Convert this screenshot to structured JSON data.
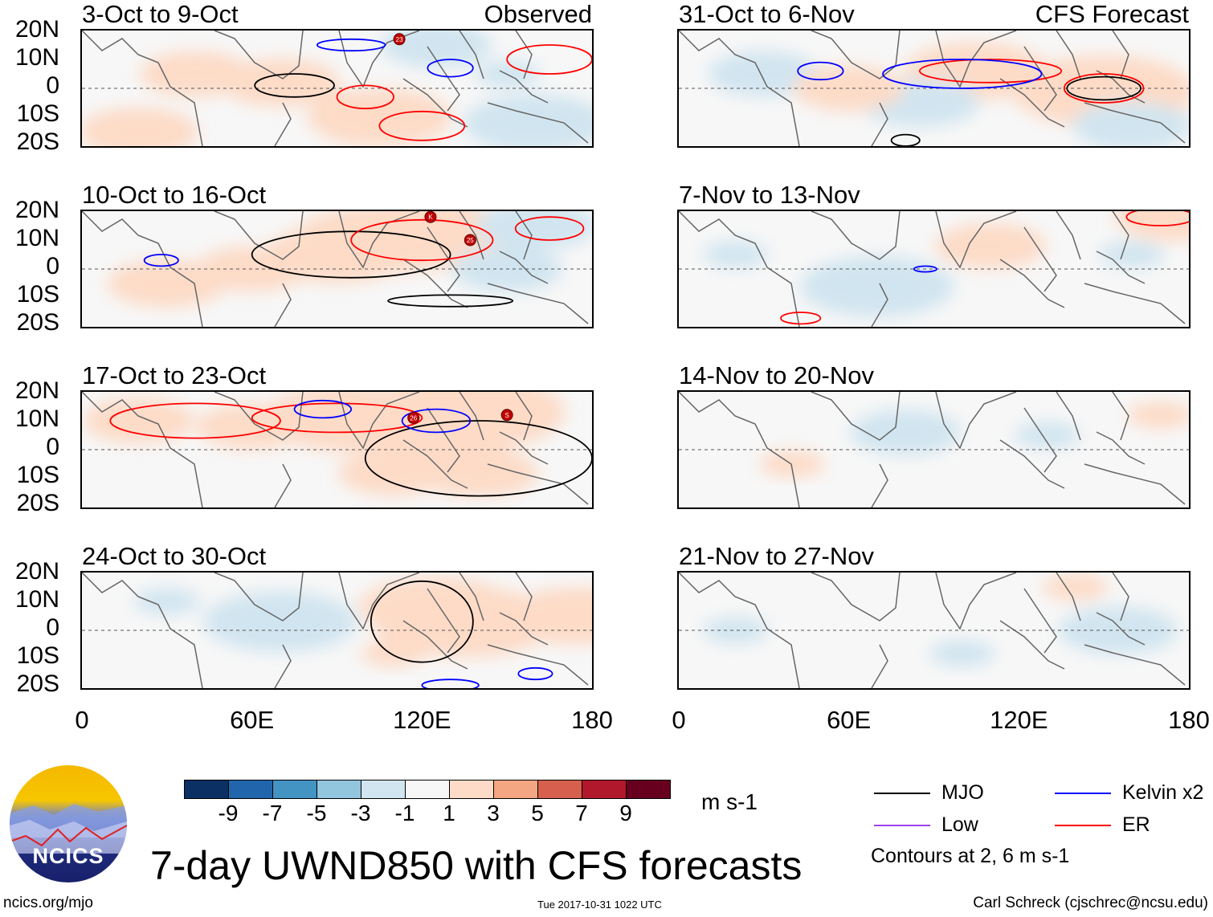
{
  "panels": [
    {
      "title": "3-Oct to 9-Oct",
      "label": "Observed",
      "col": 0,
      "row": 0,
      "features": [
        [
          20,
          -15,
          4
        ],
        [
          70,
          2,
          4
        ],
        [
          105,
          -10,
          5
        ],
        [
          125,
          15,
          -3
        ],
        [
          160,
          -12,
          -5
        ],
        [
          150,
          5,
          -2
        ],
        [
          40,
          5,
          3
        ]
      ],
      "contours": [
        [
          "MJO",
          75,
          1,
          14,
          4
        ],
        [
          "ER",
          100,
          -3,
          10,
          4
        ],
        [
          "ER",
          120,
          -13,
          15,
          5
        ],
        [
          "Kelvin",
          95,
          15,
          12,
          2
        ],
        [
          "Kelvin",
          130,
          7,
          8,
          3
        ],
        [
          "ER",
          165,
          10,
          15,
          5
        ]
      ],
      "storms": [
        [
          "23",
          112,
          17
        ]
      ]
    },
    {
      "title": "10-Oct to 16-Oct",
      "label": "",
      "col": 0,
      "row": 1,
      "features": [
        [
          105,
          10,
          7
        ],
        [
          120,
          12,
          8
        ],
        [
          90,
          5,
          5
        ],
        [
          60,
          0,
          3
        ],
        [
          30,
          -5,
          4
        ],
        [
          150,
          0,
          -3
        ],
        [
          160,
          15,
          -4
        ]
      ],
      "contours": [
        [
          "MJO",
          95,
          5,
          35,
          8
        ],
        [
          "MJO",
          130,
          -11,
          22,
          2
        ],
        [
          "ER",
          120,
          10,
          25,
          7
        ],
        [
          "ER",
          165,
          14,
          12,
          4
        ],
        [
          "Kelvin",
          28,
          3,
          6,
          2
        ]
      ],
      "storms": [
        [
          "K",
          123,
          18
        ],
        [
          "25",
          137,
          10
        ]
      ]
    },
    {
      "title": "17-Oct to 23-Oct",
      "label": "",
      "col": 0,
      "row": 2,
      "features": [
        [
          95,
          11,
          7
        ],
        [
          125,
          8,
          8
        ],
        [
          135,
          13,
          9
        ],
        [
          60,
          8,
          3
        ],
        [
          140,
          -8,
          4
        ],
        [
          20,
          10,
          3
        ],
        [
          110,
          -8,
          3
        ]
      ],
      "contours": [
        [
          "MJO",
          140,
          -3,
          40,
          13
        ],
        [
          "ER",
          90,
          11,
          30,
          5
        ],
        [
          "Kelvin",
          125,
          10,
          12,
          4
        ],
        [
          "Kelvin",
          85,
          14,
          10,
          3
        ],
        [
          "ER",
          40,
          10,
          30,
          6
        ]
      ],
      "storms": [
        [
          "26",
          117,
          11
        ],
        [
          "S",
          150,
          12
        ]
      ]
    },
    {
      "title": "24-Oct to 30-Oct",
      "label": "",
      "col": 0,
      "row": 3,
      "features": [
        [
          70,
          3,
          -6
        ],
        [
          135,
          3,
          8
        ],
        [
          125,
          8,
          6
        ],
        [
          175,
          5,
          5
        ],
        [
          30,
          10,
          -2
        ],
        [
          110,
          -8,
          2
        ]
      ],
      "contours": [
        [
          "MJO",
          120,
          3,
          18,
          14
        ],
        [
          "Kelvin",
          160,
          -15,
          6,
          2
        ],
        [
          "Kelvin",
          130,
          -19,
          10,
          2
        ]
      ],
      "storms": []
    },
    {
      "title": "31-Oct to 6-Nov",
      "label": "CFS Forecast",
      "col": 1,
      "row": 0,
      "features": [
        [
          150,
          -1,
          8
        ],
        [
          105,
          6,
          5
        ],
        [
          85,
          -5,
          -4
        ],
        [
          160,
          -13,
          -4
        ],
        [
          30,
          5,
          -3
        ],
        [
          60,
          0,
          3
        ]
      ],
      "contours": [
        [
          "MJO",
          150,
          0,
          13,
          4
        ],
        [
          "ER",
          150,
          0,
          14,
          5
        ],
        [
          "ER",
          110,
          6,
          25,
          4
        ],
        [
          "Kelvin",
          100,
          5,
          28,
          5
        ],
        [
          "Kelvin",
          50,
          6,
          8,
          3
        ],
        [
          "MJO",
          80,
          -18,
          5,
          2
        ]
      ],
      "storms": []
    },
    {
      "title": "7-Nov to 13-Nov",
      "label": "",
      "col": 1,
      "row": 1,
      "features": [
        [
          70,
          -6,
          -6
        ],
        [
          110,
          8,
          3
        ],
        [
          160,
          5,
          -2
        ],
        [
          20,
          5,
          -2
        ],
        [
          175,
          18,
          4
        ]
      ],
      "contours": [
        [
          "ER",
          43,
          -17,
          7,
          2
        ],
        [
          "Kelvin",
          87,
          0,
          4,
          1
        ],
        [
          "ER",
          170,
          18,
          12,
          3
        ]
      ],
      "storms": []
    },
    {
      "title": "14-Nov to 20-Nov",
      "label": "",
      "col": 1,
      "row": 2,
      "features": [
        [
          80,
          6,
          -3
        ],
        [
          130,
          5,
          -2
        ],
        [
          170,
          12,
          2
        ],
        [
          40,
          -5,
          2
        ]
      ],
      "contours": [],
      "storms": []
    },
    {
      "title": "21-Nov to 27-Nov",
      "label": "",
      "col": 1,
      "row": 3,
      "features": [
        [
          155,
          0,
          -4
        ],
        [
          100,
          -8,
          -2
        ],
        [
          20,
          0,
          -2
        ],
        [
          140,
          15,
          2
        ]
      ],
      "contours": [],
      "storms": []
    }
  ],
  "lat_labels": [
    "20N",
    "10N",
    "0",
    "10S",
    "20S"
  ],
  "lon_labels": [
    "0",
    "60E",
    "120E",
    "180"
  ],
  "colorbar": {
    "colors": [
      "#0b3063",
      "#2166ac",
      "#4393c3",
      "#92c5de",
      "#d1e5f0",
      "#f7f7f7",
      "#fddbc7",
      "#f4a582",
      "#d6604d",
      "#b2182b",
      "#67001f"
    ],
    "labels": [
      "-9",
      "-7",
      "-5",
      "-3",
      "-1",
      "1",
      "3",
      "5",
      "7",
      "9"
    ],
    "unit": "m s-1"
  },
  "legend": {
    "items": [
      {
        "label": "MJO",
        "color": "#000000"
      },
      {
        "label": "Kelvin x2",
        "color": "#0000ff"
      },
      {
        "label": "Low",
        "color": "#a040f0"
      },
      {
        "label": "ER",
        "color": "#ff0000"
      }
    ],
    "note": "Contours at 2, 6 m s-1"
  },
  "title": "7-day UWND850 with CFS forecasts",
  "logo_text": "NCICS",
  "footer": {
    "left": "ncics.org/mjo",
    "center": "Tue 2017-10-31 1022 UTC",
    "right": "Carl Schreck (cjschrec@ncsu.edu)"
  }
}
